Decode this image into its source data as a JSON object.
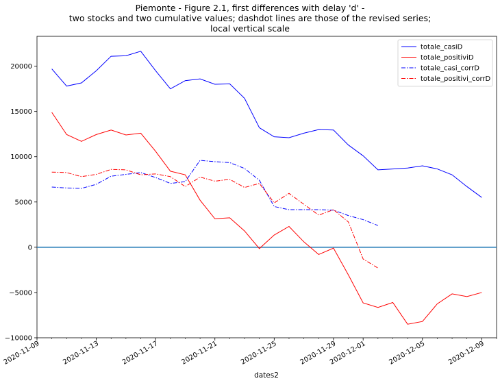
{
  "chart_data": {
    "type": "line",
    "title": [
      "Piemonte - Figure 2.1, first differences with delay 'd' -",
      "two stocks and two cumulative values; dashdot lines are those of the revised series;",
      "local vertical scale"
    ],
    "xlabel": "dates2",
    "ylabel": "",
    "xlim": [
      "2020-11-09",
      "2020-12-10"
    ],
    "ylim": [
      -10000,
      23300
    ],
    "x_ticks": [
      "2020-11-09",
      "2020-11-13",
      "2020-11-17",
      "2020-11-21",
      "2020-11-25",
      "2020-11-29",
      "2020-12-01",
      "2020-12-05",
      "2020-12-09"
    ],
    "y_ticks": [
      -10000,
      -5000,
      0,
      5000,
      10000,
      15000,
      20000
    ],
    "y_tick_labels": [
      "−10000",
      "−5000",
      "0",
      "5000",
      "10000",
      "15000",
      "20000"
    ],
    "hline": {
      "y": 0,
      "color": "#1f77b4"
    },
    "legend_position": "top-right",
    "series": [
      {
        "name": "totale_casiD",
        "color": "#0000ff",
        "style": "solid",
        "x": [
          "2020-11-10",
          "2020-11-11",
          "2020-11-12",
          "2020-11-13",
          "2020-11-14",
          "2020-11-15",
          "2020-11-16",
          "2020-11-17",
          "2020-11-18",
          "2020-11-19",
          "2020-11-20",
          "2020-11-21",
          "2020-11-22",
          "2020-11-23",
          "2020-11-24",
          "2020-11-25",
          "2020-11-26",
          "2020-11-27",
          "2020-11-28",
          "2020-11-29",
          "2020-11-30",
          "2020-12-01",
          "2020-12-02",
          "2020-12-03",
          "2020-12-04",
          "2020-12-05",
          "2020-12-06",
          "2020-12-07",
          "2020-12-08",
          "2020-12-09"
        ],
        "values": [
          19700,
          17800,
          18150,
          19500,
          21100,
          21150,
          21650,
          19500,
          17500,
          18400,
          18600,
          18000,
          18050,
          16450,
          13200,
          12200,
          12100,
          12600,
          13000,
          12950,
          11300,
          10100,
          8550,
          8650,
          8750,
          9000,
          8650,
          8000,
          6700,
          5500
        ]
      },
      {
        "name": "totale_positiviD",
        "color": "#ff0000",
        "style": "solid",
        "x": [
          "2020-11-10",
          "2020-11-11",
          "2020-11-12",
          "2020-11-13",
          "2020-11-14",
          "2020-11-15",
          "2020-11-16",
          "2020-11-17",
          "2020-11-18",
          "2020-11-19",
          "2020-11-20",
          "2020-11-21",
          "2020-11-22",
          "2020-11-23",
          "2020-11-24",
          "2020-11-25",
          "2020-11-26",
          "2020-11-27",
          "2020-11-28",
          "2020-11-29",
          "2020-11-30",
          "2020-12-01",
          "2020-12-02",
          "2020-12-03",
          "2020-12-04",
          "2020-12-05",
          "2020-12-06",
          "2020-12-07",
          "2020-12-08",
          "2020-12-09"
        ],
        "values": [
          14900,
          12450,
          11700,
          12450,
          12950,
          12400,
          12600,
          10600,
          8400,
          8000,
          5200,
          3150,
          3250,
          1800,
          -150,
          1350,
          2300,
          600,
          -800,
          -100,
          -3050,
          -6150,
          -6650,
          -6100,
          -8500,
          -8200,
          -6250,
          -5150,
          -5450,
          -5000
        ]
      },
      {
        "name": "totale_casi_corrD",
        "color": "#0000ff",
        "style": "dashdot",
        "x": [
          "2020-11-10",
          "2020-11-11",
          "2020-11-12",
          "2020-11-13",
          "2020-11-14",
          "2020-11-15",
          "2020-11-16",
          "2020-11-17",
          "2020-11-18",
          "2020-11-19",
          "2020-11-20",
          "2020-11-21",
          "2020-11-22",
          "2020-11-23",
          "2020-11-24",
          "2020-11-25",
          "2020-11-26",
          "2020-11-27",
          "2020-11-28",
          "2020-11-29",
          "2020-11-30",
          "2020-12-01",
          "2020-12-02"
        ],
        "values": [
          6650,
          6550,
          6500,
          6950,
          7850,
          8050,
          8250,
          7700,
          7050,
          7250,
          9600,
          9450,
          9350,
          8700,
          7400,
          4500,
          4150,
          4150,
          4150,
          4100,
          3500,
          3050,
          2400
        ]
      },
      {
        "name": "totale_positivi_corrD",
        "color": "#ff0000",
        "style": "dashdot",
        "x": [
          "2020-11-10",
          "2020-11-11",
          "2020-11-12",
          "2020-11-13",
          "2020-11-14",
          "2020-11-15",
          "2020-11-16",
          "2020-11-17",
          "2020-11-18",
          "2020-11-19",
          "2020-11-20",
          "2020-11-21",
          "2020-11-22",
          "2020-11-23",
          "2020-11-24",
          "2020-11-25",
          "2020-11-26",
          "2020-11-27",
          "2020-11-28",
          "2020-11-29",
          "2020-11-30",
          "2020-12-01",
          "2020-12-02"
        ],
        "values": [
          8300,
          8250,
          7800,
          8050,
          8600,
          8550,
          8000,
          8100,
          7800,
          6700,
          7750,
          7300,
          7500,
          6600,
          7050,
          4900,
          5950,
          4750,
          3550,
          4150,
          2800,
          -1300,
          -2300
        ]
      }
    ]
  }
}
